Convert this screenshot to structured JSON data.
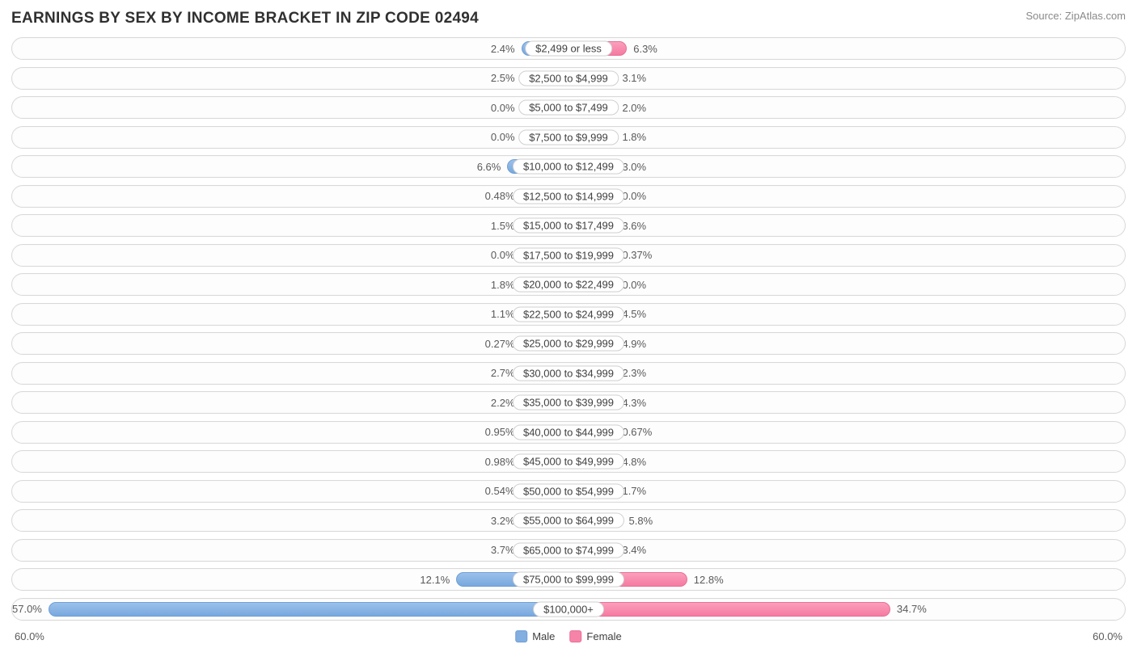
{
  "title": "EARNINGS BY SEX BY INCOME BRACKET IN ZIP CODE 02494",
  "source": "Source: ZipAtlas.com",
  "chart": {
    "type": "diverging-bar",
    "axis_max": 60.0,
    "axis_label_left": "60.0%",
    "axis_label_right": "60.0%",
    "male_color": "#82aee0",
    "female_color": "#f684a8",
    "track_border_color": "#d9d9d9",
    "track_bg": "#fdfdfd",
    "label_bg": "#ffffff",
    "label_border": "#d0d0d0",
    "text_color": "#5a5a5a",
    "title_color": "#303030",
    "min_bar_pct": 8.5,
    "legend": {
      "male": "Male",
      "female": "Female"
    },
    "rows": [
      {
        "label": "$2,499 or less",
        "male": 2.4,
        "female": 6.3,
        "male_txt": "2.4%",
        "female_txt": "6.3%"
      },
      {
        "label": "$2,500 to $4,999",
        "male": 2.5,
        "female": 3.1,
        "male_txt": "2.5%",
        "female_txt": "3.1%"
      },
      {
        "label": "$5,000 to $7,499",
        "male": 0.0,
        "female": 2.0,
        "male_txt": "0.0%",
        "female_txt": "2.0%"
      },
      {
        "label": "$7,500 to $9,999",
        "male": 0.0,
        "female": 1.8,
        "male_txt": "0.0%",
        "female_txt": "1.8%"
      },
      {
        "label": "$10,000 to $12,499",
        "male": 6.6,
        "female": 3.0,
        "male_txt": "6.6%",
        "female_txt": "3.0%"
      },
      {
        "label": "$12,500 to $14,999",
        "male": 0.48,
        "female": 0.0,
        "male_txt": "0.48%",
        "female_txt": "0.0%"
      },
      {
        "label": "$15,000 to $17,499",
        "male": 1.5,
        "female": 3.6,
        "male_txt": "1.5%",
        "female_txt": "3.6%"
      },
      {
        "label": "$17,500 to $19,999",
        "male": 0.0,
        "female": 0.37,
        "male_txt": "0.0%",
        "female_txt": "0.37%"
      },
      {
        "label": "$20,000 to $22,499",
        "male": 1.8,
        "female": 0.0,
        "male_txt": "1.8%",
        "female_txt": "0.0%"
      },
      {
        "label": "$22,500 to $24,999",
        "male": 1.1,
        "female": 4.5,
        "male_txt": "1.1%",
        "female_txt": "4.5%"
      },
      {
        "label": "$25,000 to $29,999",
        "male": 0.27,
        "female": 4.9,
        "male_txt": "0.27%",
        "female_txt": "4.9%"
      },
      {
        "label": "$30,000 to $34,999",
        "male": 2.7,
        "female": 2.3,
        "male_txt": "2.7%",
        "female_txt": "2.3%"
      },
      {
        "label": "$35,000 to $39,999",
        "male": 2.2,
        "female": 4.3,
        "male_txt": "2.2%",
        "female_txt": "4.3%"
      },
      {
        "label": "$40,000 to $44,999",
        "male": 0.95,
        "female": 0.67,
        "male_txt": "0.95%",
        "female_txt": "0.67%"
      },
      {
        "label": "$45,000 to $49,999",
        "male": 0.98,
        "female": 4.8,
        "male_txt": "0.98%",
        "female_txt": "4.8%"
      },
      {
        "label": "$50,000 to $54,999",
        "male": 0.54,
        "female": 1.7,
        "male_txt": "0.54%",
        "female_txt": "1.7%"
      },
      {
        "label": "$55,000 to $64,999",
        "male": 3.2,
        "female": 5.8,
        "male_txt": "3.2%",
        "female_txt": "5.8%"
      },
      {
        "label": "$65,000 to $74,999",
        "male": 3.7,
        "female": 3.4,
        "male_txt": "3.7%",
        "female_txt": "3.4%"
      },
      {
        "label": "$75,000 to $99,999",
        "male": 12.1,
        "female": 12.8,
        "male_txt": "12.1%",
        "female_txt": "12.8%"
      },
      {
        "label": "$100,000+",
        "male": 57.0,
        "female": 34.7,
        "male_txt": "57.0%",
        "female_txt": "34.7%"
      }
    ]
  }
}
